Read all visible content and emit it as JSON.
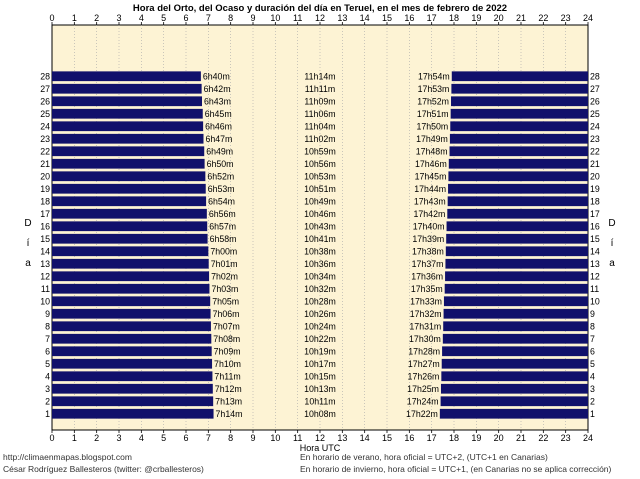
{
  "chart_data": {
    "type": "bar",
    "title": "Hora del Orto, del Ocaso y duración del día en Teruel, en el mes de febrero de 2022",
    "xlabel": "Hora UTC",
    "ylabel": "D í a",
    "xlim": [
      0,
      24
    ],
    "ylim": [
      1,
      28
    ],
    "x_ticks": [
      "0",
      "1",
      "2",
      "3",
      "4",
      "5",
      "6",
      "7",
      "8",
      "9",
      "10",
      "11",
      "12",
      "13",
      "14",
      "15",
      "16",
      "17",
      "18",
      "19",
      "20",
      "21",
      "22",
      "23",
      "24"
    ],
    "grid": true,
    "days": [
      1,
      2,
      3,
      4,
      5,
      6,
      7,
      8,
      9,
      10,
      11,
      12,
      13,
      14,
      15,
      16,
      17,
      18,
      19,
      20,
      21,
      22,
      23,
      24,
      25,
      26,
      27,
      28
    ],
    "sunrise": [
      "7h14m",
      "7h13m",
      "7h12m",
      "7h11m",
      "7h10m",
      "7h09m",
      "7h08m",
      "7h07m",
      "7h06m",
      "7h05m",
      "7h03m",
      "7h02m",
      "7h01m",
      "7h00m",
      "6h58m",
      "6h57m",
      "6h56m",
      "6h54m",
      "6h53m",
      "6h52m",
      "6h50m",
      "6h49m",
      "6h47m",
      "6h46m",
      "6h45m",
      "6h43m",
      "6h42m",
      "6h40m"
    ],
    "day_length": [
      "10h08m",
      "10h11m",
      "10h13m",
      "10h15m",
      "10h17m",
      "10h19m",
      "10h22m",
      "10h24m",
      "10h26m",
      "10h28m",
      "10h32m",
      "10h34m",
      "10h36m",
      "10h38m",
      "10h41m",
      "10h43m",
      "10h46m",
      "10h49m",
      "10h51m",
      "10h53m",
      "10h56m",
      "10h59m",
      "11h02m",
      "11h04m",
      "11h06m",
      "11h09m",
      "11h11m",
      "11h14m"
    ],
    "sunset": [
      "17h22m",
      "17h24m",
      "17h25m",
      "17h26m",
      "17h27m",
      "17h28m",
      "17h30m",
      "17h31m",
      "17h32m",
      "17h33m",
      "17h35m",
      "17h36m",
      "17h37m",
      "17h38m",
      "17h39m",
      "17h40m",
      "17h42m",
      "17h43m",
      "17h44m",
      "17h45m",
      "17h46m",
      "17h48m",
      "17h49m",
      "17h50m",
      "17h51m",
      "17h52m",
      "17h53m",
      "17h54m"
    ]
  },
  "footer": {
    "blog": "http://climaenmapas.blogspot.com",
    "author": "César Rodríguez Ballesteros (twitter: @crballesteros)",
    "summer_note": "En horario de verano, hora oficial = UTC+2, (UTC+1 en Canarias)",
    "winter_note": "En horario de invierno, hora oficial = UTC+1, (en Canarias no se aplica corrección)"
  },
  "colors": {
    "background": "#fdf3d4",
    "night_bar": "#10106b",
    "grid": "#a9a9a9",
    "text": "#000000"
  }
}
